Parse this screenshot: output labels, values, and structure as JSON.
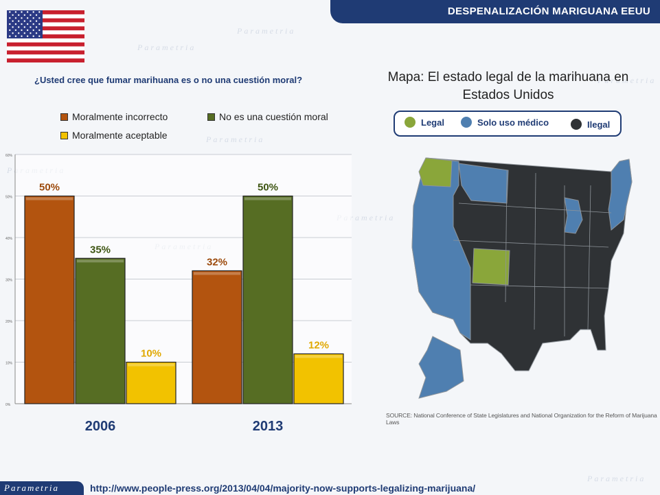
{
  "header": {
    "title": "DESPENALIZACIÓN MARIGUANA EEUU"
  },
  "question": "¿Usted cree que fumar marihuana es o no una cuestión moral?",
  "legend": [
    {
      "label": "Moralmente incorrecto",
      "color": "#b3540f"
    },
    {
      "label": "No es una cuestión moral",
      "color": "#566d23"
    },
    {
      "label": "Moralmente aceptable",
      "color": "#f2c200"
    }
  ],
  "chart_data": {
    "type": "bar",
    "categories": [
      "2006",
      "2013"
    ],
    "series": [
      {
        "name": "Moralmente incorrecto",
        "values": [
          50,
          32
        ],
        "labels": [
          "50%",
          "32%"
        ],
        "color": "#b3540f",
        "label_color": "#9c4a0c"
      },
      {
        "name": "No es una cuestión moral",
        "values": [
          35,
          50
        ],
        "labels": [
          "35%",
          "50%"
        ],
        "color": "#566d23",
        "label_color": "#3e5512"
      },
      {
        "name": "Moralmente aceptable",
        "values": [
          10,
          12
        ],
        "labels": [
          "10%",
          "12%"
        ],
        "color": "#f2c200",
        "label_color": "#e0a800"
      }
    ],
    "yticks": [
      "0%",
      "10%",
      "20%",
      "30%",
      "40%",
      "50%",
      "60%"
    ],
    "ylim": [
      0,
      60
    ],
    "grid": true
  },
  "map": {
    "title": "Mapa: El estado legal de la marihuana en Estados Unidos",
    "legend": [
      {
        "label": "Legal",
        "color": "#8aa63a"
      },
      {
        "label": "Solo uso médico",
        "color": "#4f7fb0"
      },
      {
        "label": "Ilegal",
        "color": "#2f3235"
      }
    ],
    "source": "SOURCE: National Conference of State Legislatures and National Organization for the Reform of Marijuana Laws"
  },
  "watermark": "Parametria",
  "footer": {
    "logo": "Parametria",
    "url": "http://www.people-press.org/2013/04/04/majority-now-supports-legalizing-marijuana/"
  }
}
